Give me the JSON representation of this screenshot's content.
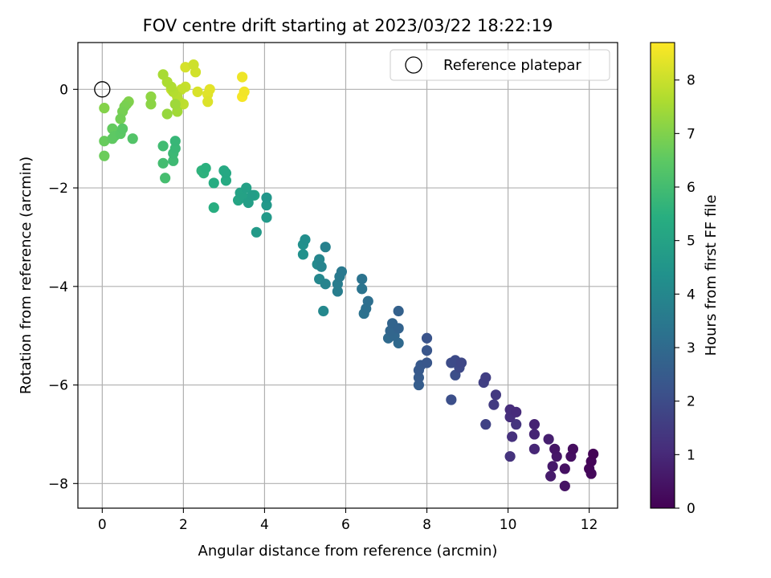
{
  "chart_data": {
    "type": "scatter",
    "title": "FOV centre drift starting at 2023/03/22 18:22:19",
    "xlabel": "Angular distance from reference (arcmin)",
    "ylabel": "Rotation from reference (arcmin)",
    "xlim": [
      -0.6,
      12.7
    ],
    "ylim": [
      -8.5,
      0.95
    ],
    "xticks": [
      0,
      2,
      4,
      6,
      8,
      10,
      12
    ],
    "yticks": [
      0,
      -2,
      -4,
      -6,
      -8
    ],
    "grid": true,
    "legend": {
      "placement": "top-right",
      "entries": [
        "Reference platepar"
      ]
    },
    "reference_point": {
      "x": 0,
      "y": 0
    },
    "colorbar": {
      "label": "Hours from first FF file",
      "range": [
        0,
        8.7
      ],
      "ticks": [
        0,
        1,
        2,
        3,
        4,
        5,
        6,
        7,
        8
      ],
      "colormap": "viridis"
    },
    "points": [
      [
        12.1,
        -7.4,
        0.05
      ],
      [
        12.05,
        -7.55,
        0.1
      ],
      [
        12.0,
        -7.7,
        0.15
      ],
      [
        12.05,
        -7.8,
        0.2
      ],
      [
        11.6,
        -7.3,
        0.3
      ],
      [
        11.55,
        -7.45,
        0.35
      ],
      [
        11.4,
        -7.7,
        0.4
      ],
      [
        11.4,
        -8.05,
        0.45
      ],
      [
        11.15,
        -7.3,
        0.5
      ],
      [
        11.2,
        -7.45,
        0.55
      ],
      [
        11.1,
        -7.65,
        0.6
      ],
      [
        11.05,
        -7.85,
        0.65
      ],
      [
        11.0,
        -7.1,
        0.75
      ],
      [
        10.65,
        -6.8,
        0.85
      ],
      [
        10.65,
        -7.0,
        0.9
      ],
      [
        10.65,
        -7.3,
        0.95
      ],
      [
        10.2,
        -6.55,
        1.05
      ],
      [
        10.05,
        -6.5,
        1.1
      ],
      [
        10.05,
        -6.65,
        1.15
      ],
      [
        10.1,
        -7.05,
        1.2
      ],
      [
        10.05,
        -7.45,
        1.25
      ],
      [
        10.2,
        -6.8,
        1.3
      ],
      [
        9.7,
        -6.2,
        1.45
      ],
      [
        9.65,
        -6.4,
        1.5
      ],
      [
        9.45,
        -5.85,
        1.6
      ],
      [
        9.4,
        -5.95,
        1.65
      ],
      [
        9.45,
        -6.8,
        1.7
      ],
      [
        8.85,
        -5.55,
        1.85
      ],
      [
        8.8,
        -5.65,
        1.9
      ],
      [
        8.7,
        -5.5,
        1.95
      ],
      [
        8.6,
        -5.55,
        2.0
      ],
      [
        8.7,
        -5.8,
        2.05
      ],
      [
        8.6,
        -6.3,
        2.1
      ],
      [
        8.0,
        -5.05,
        2.25
      ],
      [
        8.0,
        -5.3,
        2.3
      ],
      [
        8.0,
        -5.55,
        2.35
      ],
      [
        7.85,
        -5.6,
        2.4
      ],
      [
        7.8,
        -5.7,
        2.45
      ],
      [
        7.8,
        -5.85,
        2.5
      ],
      [
        7.8,
        -6.0,
        2.55
      ],
      [
        7.3,
        -4.5,
        2.7
      ],
      [
        7.3,
        -4.85,
        2.75
      ],
      [
        7.15,
        -4.75,
        2.8
      ],
      [
        7.1,
        -4.9,
        2.85
      ],
      [
        7.2,
        -5.0,
        2.9
      ],
      [
        7.3,
        -5.15,
        2.95
      ],
      [
        7.05,
        -5.05,
        3.0
      ],
      [
        6.55,
        -4.3,
        3.15
      ],
      [
        6.5,
        -4.45,
        3.2
      ],
      [
        6.45,
        -4.55,
        3.25
      ],
      [
        6.4,
        -3.85,
        3.3
      ],
      [
        6.4,
        -4.05,
        3.35
      ],
      [
        5.9,
        -3.7,
        3.5
      ],
      [
        5.85,
        -3.8,
        3.55
      ],
      [
        5.8,
        -3.95,
        3.6
      ],
      [
        5.8,
        -4.1,
        3.65
      ],
      [
        5.5,
        -3.2,
        3.8
      ],
      [
        5.5,
        -3.95,
        3.85
      ],
      [
        5.4,
        -3.6,
        3.9
      ],
      [
        5.35,
        -3.45,
        3.95
      ],
      [
        5.35,
        -3.85,
        4.0
      ],
      [
        5.45,
        -4.5,
        4.05
      ],
      [
        5.3,
        -3.55,
        4.1
      ],
      [
        5.0,
        -3.05,
        4.25
      ],
      [
        4.95,
        -3.15,
        4.3
      ],
      [
        4.95,
        -3.35,
        4.35
      ],
      [
        4.05,
        -2.2,
        4.55
      ],
      [
        4.05,
        -2.35,
        4.6
      ],
      [
        4.05,
        -2.6,
        4.65
      ],
      [
        3.8,
        -2.9,
        4.7
      ],
      [
        3.7,
        -2.15,
        4.8
      ],
      [
        3.6,
        -2.3,
        4.85
      ],
      [
        3.55,
        -2.0,
        4.9
      ],
      [
        3.5,
        -2.2,
        4.95
      ],
      [
        3.4,
        -2.1,
        5.0
      ],
      [
        3.35,
        -2.25,
        5.05
      ],
      [
        3.75,
        -2.15,
        5.1
      ],
      [
        3.05,
        -1.7,
        5.2
      ],
      [
        3.0,
        -1.65,
        5.25
      ],
      [
        3.05,
        -1.85,
        5.3
      ],
      [
        2.75,
        -1.9,
        5.35
      ],
      [
        2.75,
        -2.4,
        5.4
      ],
      [
        2.55,
        -1.6,
        5.5
      ],
      [
        2.5,
        -1.7,
        5.55
      ],
      [
        2.45,
        -1.65,
        5.6
      ],
      [
        1.8,
        -1.05,
        5.75
      ],
      [
        1.8,
        -1.2,
        5.8
      ],
      [
        1.75,
        -1.3,
        5.85
      ],
      [
        1.75,
        -1.45,
        5.9
      ],
      [
        1.5,
        -1.15,
        5.95
      ],
      [
        1.5,
        -1.5,
        6.0
      ],
      [
        1.55,
        -1.8,
        6.05
      ],
      [
        0.75,
        -1.0,
        6.3
      ],
      [
        0.5,
        -0.8,
        6.4
      ],
      [
        0.45,
        -0.9,
        6.45
      ],
      [
        0.3,
        -0.95,
        6.5
      ],
      [
        0.25,
        -1.0,
        6.55
      ],
      [
        0.25,
        -0.8,
        6.6
      ],
      [
        0.05,
        -1.05,
        6.65
      ],
      [
        0.05,
        -1.35,
        6.7
      ],
      [
        0.45,
        -0.6,
        6.8
      ],
      [
        0.5,
        -0.45,
        6.85
      ],
      [
        0.55,
        -0.35,
        6.9
      ],
      [
        0.6,
        -0.3,
        6.95
      ],
      [
        0.65,
        -0.25,
        7.0
      ],
      [
        0.05,
        -0.38,
        7.05
      ],
      [
        1.2,
        -0.3,
        7.15
      ],
      [
        1.2,
        -0.15,
        7.2
      ],
      [
        1.6,
        -0.5,
        7.3
      ],
      [
        1.8,
        -0.3,
        7.4
      ],
      [
        1.85,
        -0.45,
        7.45
      ],
      [
        1.5,
        0.3,
        7.55
      ],
      [
        1.6,
        0.15,
        7.6
      ],
      [
        1.7,
        0.05,
        7.65
      ],
      [
        1.75,
        -0.05,
        7.7
      ],
      [
        1.85,
        -0.15,
        7.75
      ],
      [
        1.9,
        -0.25,
        7.8
      ],
      [
        2.0,
        -0.3,
        7.85
      ],
      [
        1.95,
        0.0,
        7.9
      ],
      [
        2.05,
        0.05,
        7.95
      ],
      [
        1.7,
        0.0,
        8.0
      ],
      [
        2.25,
        0.5,
        8.05
      ],
      [
        2.3,
        0.35,
        8.1
      ],
      [
        2.05,
        0.45,
        8.15
      ],
      [
        2.35,
        -0.05,
        8.2
      ],
      [
        2.6,
        -0.25,
        8.25
      ],
      [
        2.6,
        -0.1,
        8.3
      ],
      [
        2.65,
        0.0,
        8.35
      ],
      [
        3.45,
        0.25,
        8.5
      ],
      [
        3.5,
        -0.05,
        8.55
      ],
      [
        3.45,
        -0.15,
        8.6
      ]
    ]
  }
}
